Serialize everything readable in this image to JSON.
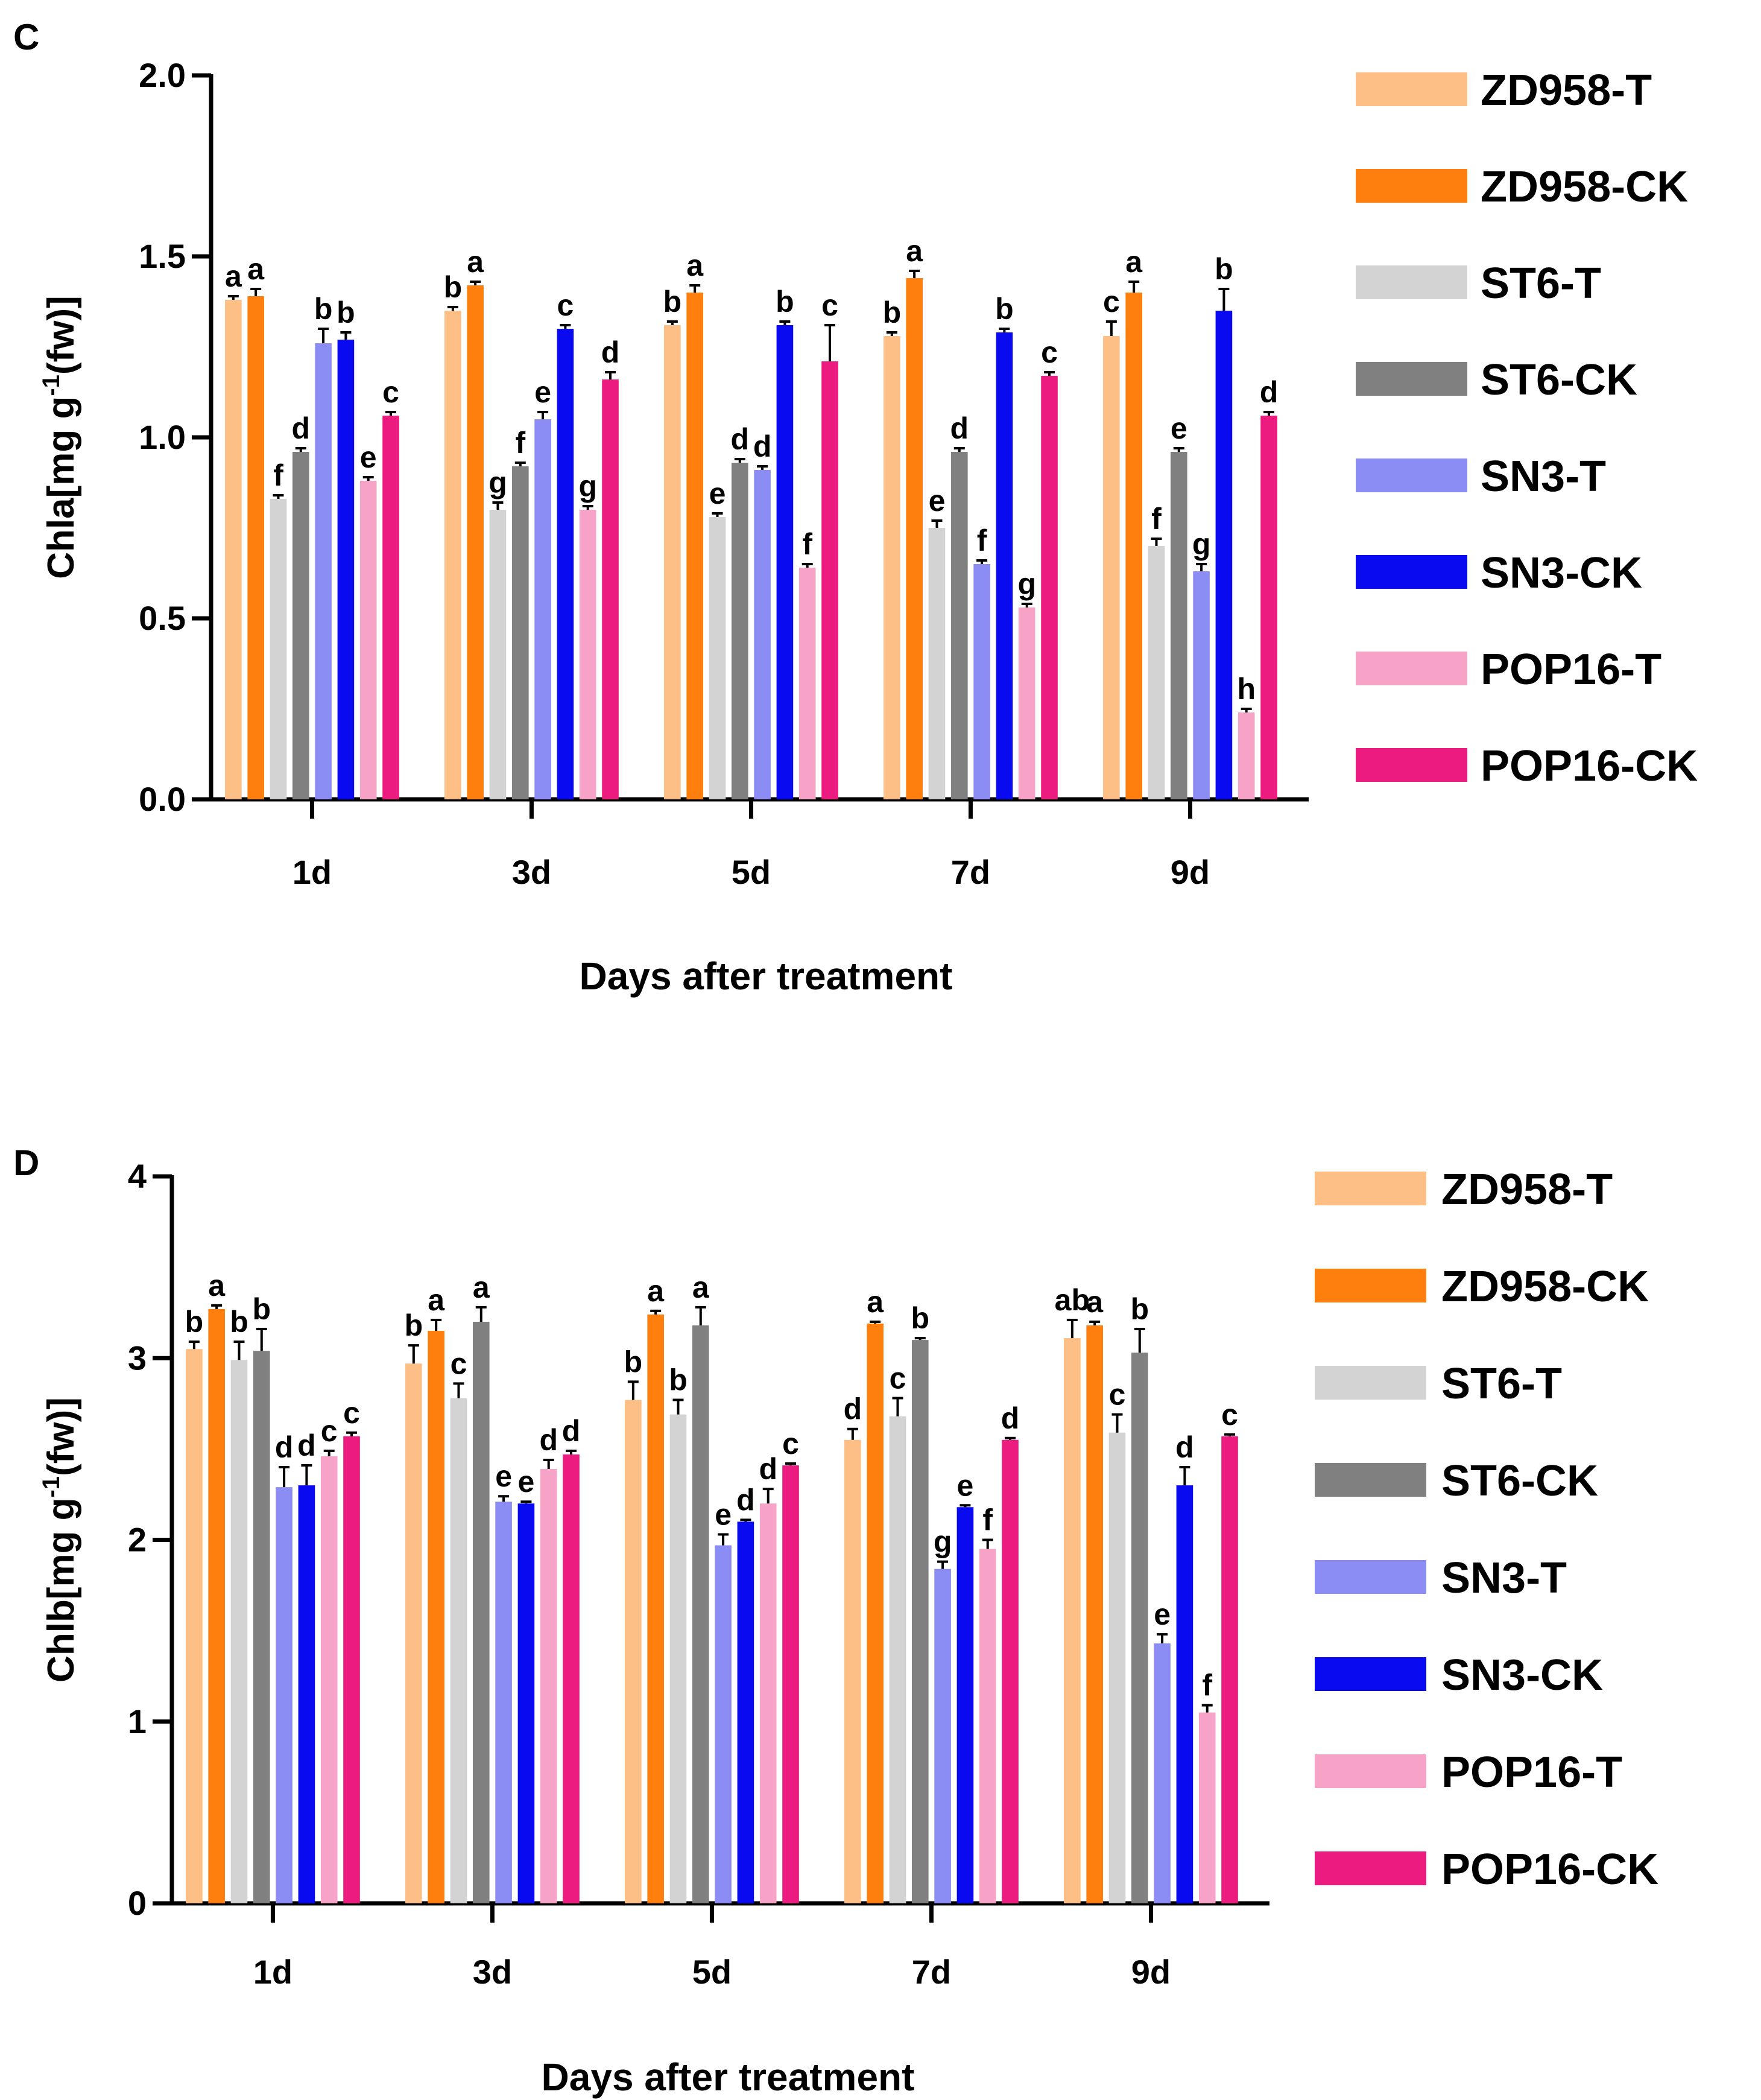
{
  "chart_data": [
    {
      "type": "bar",
      "panel": "C",
      "ylabel": "Chla[mg g",
      "ylabel_sup": "-1",
      "ylabel_tail": "(fw)]",
      "xlabel": "Days after treatment",
      "ylim": [
        0,
        2.0
      ],
      "yticks": [
        "0.0",
        "0.5",
        "1.0",
        "1.5",
        "2.0"
      ],
      "categories": [
        "1d",
        "3d",
        "5d",
        "7d",
        "9d"
      ],
      "series": [
        {
          "name": "ZD958-T",
          "color": "#FDBF85",
          "values": [
            1.38,
            1.35,
            1.31,
            1.28,
            1.28
          ],
          "err": [
            0.01,
            0.01,
            0.01,
            0.01,
            0.04
          ],
          "letters": [
            "a",
            "b",
            "b",
            "b",
            "c"
          ]
        },
        {
          "name": "ZD958-CK",
          "color": "#FF7F0E",
          "values": [
            1.39,
            1.42,
            1.4,
            1.44,
            1.4
          ],
          "err": [
            0.02,
            0.01,
            0.02,
            0.02,
            0.03
          ],
          "letters": [
            "a",
            "a",
            "a",
            "a",
            "a"
          ]
        },
        {
          "name": "ST6-T",
          "color": "#D3D3D3",
          "values": [
            0.83,
            0.8,
            0.78,
            0.75,
            0.7
          ],
          "err": [
            0.01,
            0.02,
            0.01,
            0.02,
            0.02
          ],
          "letters": [
            "f",
            "g",
            "e",
            "e",
            "f"
          ]
        },
        {
          "name": "ST6-CK",
          "color": "#808080",
          "values": [
            0.96,
            0.92,
            0.93,
            0.96,
            0.96
          ],
          "err": [
            0.01,
            0.01,
            0.01,
            0.01,
            0.01
          ],
          "letters": [
            "d",
            "f",
            "d",
            "d",
            "e"
          ]
        },
        {
          "name": "SN3-T",
          "color": "#8C8CF5",
          "values": [
            1.26,
            1.05,
            0.91,
            0.65,
            0.63
          ],
          "err": [
            0.04,
            0.02,
            0.01,
            0.01,
            0.02
          ],
          "letters": [
            "b",
            "e",
            "d",
            "f",
            "g"
          ]
        },
        {
          "name": "SN3-CK",
          "color": "#0A0AF0",
          "values": [
            1.27,
            1.3,
            1.31,
            1.29,
            1.35
          ],
          "err": [
            0.02,
            0.01,
            0.01,
            0.01,
            0.06
          ],
          "letters": [
            "b",
            "c",
            "b",
            "b",
            "b"
          ]
        },
        {
          "name": "POP16-T",
          "color": "#F7A3C8",
          "values": [
            0.88,
            0.8,
            0.64,
            0.53,
            0.24
          ],
          "err": [
            0.01,
            0.01,
            0.01,
            0.01,
            0.01
          ],
          "letters": [
            "e",
            "g",
            "f",
            "g",
            "h"
          ]
        },
        {
          "name": "POP16-CK",
          "color": "#EC1B7F",
          "values": [
            1.06,
            1.16,
            1.21,
            1.17,
            1.06
          ],
          "err": [
            0.01,
            0.02,
            0.1,
            0.01,
            0.01
          ],
          "letters": [
            "c",
            "d",
            "c",
            "c",
            "d"
          ]
        }
      ]
    },
    {
      "type": "bar",
      "panel": "D",
      "ylabel": "Chlb[mg g",
      "ylabel_sup": "-1",
      "ylabel_tail": "(fw)]",
      "xlabel": "Days after treatment",
      "ylim": [
        0,
        4
      ],
      "yticks": [
        "0",
        "1",
        "2",
        "3",
        "4"
      ],
      "categories": [
        "1d",
        "3d",
        "5d",
        "7d",
        "9d"
      ],
      "series": [
        {
          "name": "ZD958-T",
          "color": "#FDBF85",
          "values": [
            3.05,
            2.97,
            2.77,
            2.55,
            3.11
          ],
          "err": [
            0.04,
            0.1,
            0.1,
            0.06,
            0.1
          ],
          "letters": [
            "b",
            "b",
            "b",
            "d",
            "ab"
          ]
        },
        {
          "name": "ZD958-CK",
          "color": "#FF7F0E",
          "values": [
            3.27,
            3.15,
            3.24,
            3.19,
            3.18
          ],
          "err": [
            0.02,
            0.06,
            0.02,
            0.01,
            0.02
          ],
          "letters": [
            "a",
            "a",
            "a",
            "a",
            "a"
          ]
        },
        {
          "name": "ST6-T",
          "color": "#D3D3D3",
          "values": [
            2.99,
            2.78,
            2.69,
            2.68,
            2.59
          ],
          "err": [
            0.1,
            0.08,
            0.08,
            0.1,
            0.1
          ],
          "letters": [
            "b",
            "c",
            "b",
            "c",
            "c"
          ]
        },
        {
          "name": "ST6-CK",
          "color": "#808080",
          "values": [
            3.04,
            3.2,
            3.18,
            3.1,
            3.03
          ],
          "err": [
            0.12,
            0.08,
            0.1,
            0.01,
            0.13
          ],
          "letters": [
            "b",
            "a",
            "a",
            "b",
            "b"
          ]
        },
        {
          "name": "SN3-T",
          "color": "#8C8CF5",
          "values": [
            2.29,
            2.21,
            1.97,
            1.84,
            1.43
          ],
          "err": [
            0.11,
            0.03,
            0.06,
            0.04,
            0.05
          ],
          "letters": [
            "d",
            "e",
            "e",
            "g",
            "e"
          ]
        },
        {
          "name": "SN3-CK",
          "color": "#0A0AF0",
          "values": [
            2.3,
            2.2,
            2.1,
            2.18,
            2.3
          ],
          "err": [
            0.11,
            0.01,
            0.01,
            0.01,
            0.1
          ],
          "letters": [
            "d",
            "e",
            "d",
            "e",
            "d"
          ]
        },
        {
          "name": "POP16-T",
          "color": "#F7A3C8",
          "values": [
            2.46,
            2.39,
            2.2,
            1.95,
            1.05
          ],
          "err": [
            0.03,
            0.05,
            0.08,
            0.05,
            0.04
          ],
          "letters": [
            "c",
            "d",
            "d",
            "f",
            "f"
          ]
        },
        {
          "name": "POP16-CK",
          "color": "#EC1B7F",
          "values": [
            2.57,
            2.47,
            2.41,
            2.55,
            2.57
          ],
          "err": [
            0.02,
            0.02,
            0.01,
            0.01,
            0.01
          ],
          "letters": [
            "c",
            "d",
            "c",
            "d",
            "c"
          ]
        }
      ]
    }
  ]
}
